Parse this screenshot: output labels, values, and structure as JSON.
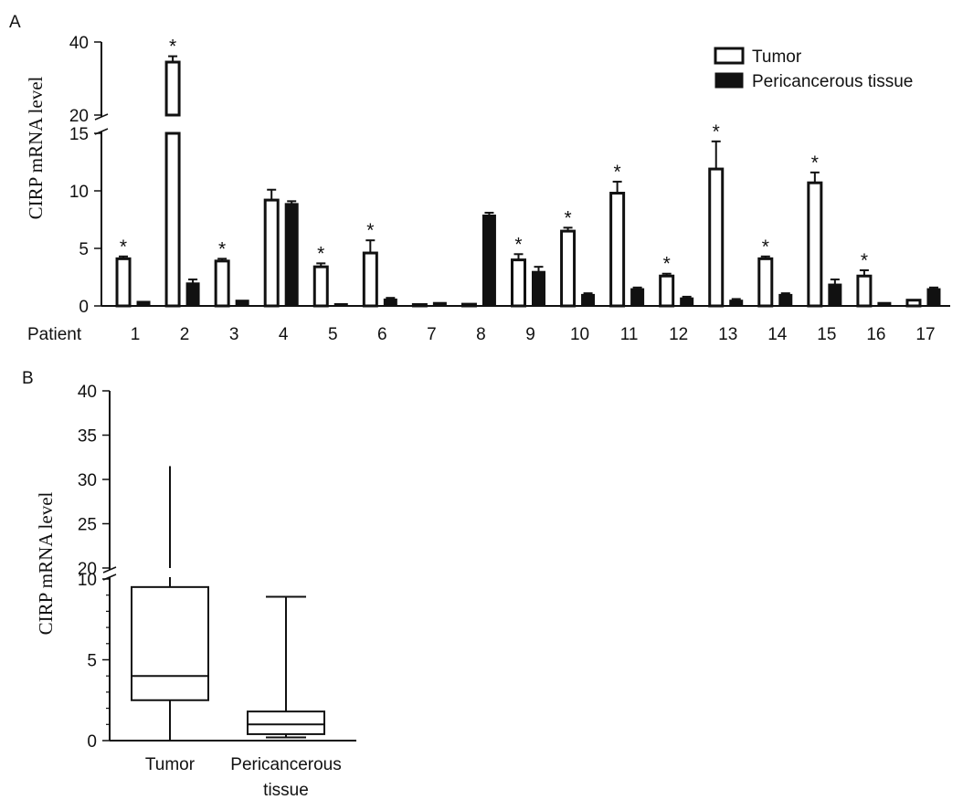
{
  "chart_data": [
    {
      "type": "bar",
      "panel_label": "A",
      "ylabel": "CIRP mRNA level",
      "xlabel": "Patient",
      "y_axis": {
        "broken": true,
        "lower_range": [
          0,
          15
        ],
        "upper_range": [
          20,
          40
        ],
        "ticks_lower": [
          0,
          5,
          10,
          15
        ],
        "ticks_upper": [
          20,
          40
        ]
      },
      "categories": [
        "1",
        "2",
        "3",
        "4",
        "5",
        "6",
        "7",
        "8",
        "9",
        "10",
        "11",
        "12",
        "13",
        "14",
        "15",
        "16",
        "17"
      ],
      "series": [
        {
          "name": "Tumor",
          "color": "#ffffff",
          "values": [
            4.1,
            34.5,
            3.9,
            9.2,
            3.4,
            4.6,
            0.05,
            0.15,
            4.0,
            6.5,
            9.8,
            2.6,
            11.9,
            4.1,
            10.7,
            2.6,
            0.5
          ],
          "errors": [
            0.2,
            1.6,
            0.2,
            0.9,
            0.3,
            1.1,
            0.0,
            0.0,
            0.5,
            0.3,
            1.0,
            0.2,
            2.4,
            0.2,
            0.9,
            0.5,
            0.0
          ]
        },
        {
          "name": "Pericancerous tissue",
          "color": "#111111",
          "values": [
            0.4,
            2.0,
            0.5,
            8.9,
            0.2,
            0.6,
            0.3,
            7.9,
            3.0,
            1.0,
            1.5,
            0.7,
            0.5,
            1.0,
            1.9,
            0.3,
            1.5
          ],
          "errors": [
            0.0,
            0.3,
            0.0,
            0.2,
            0.0,
            0.1,
            0.0,
            0.2,
            0.4,
            0.1,
            0.1,
            0.1,
            0.1,
            0.1,
            0.4,
            0.0,
            0.1
          ]
        }
      ],
      "significant": [
        1,
        2,
        3,
        5,
        6,
        9,
        10,
        11,
        12,
        13,
        14,
        15,
        16
      ],
      "star_symbol": "*",
      "legend": {
        "position": "top-right",
        "entries": [
          "Tumor",
          "Pericancerous tissue"
        ]
      }
    },
    {
      "type": "box",
      "panel_label": "B",
      "ylabel": "CIRP mRNA level",
      "categories": [
        "Tumor",
        "Pericancerous tissue"
      ],
      "category_lines": [
        [
          "Tumor"
        ],
        [
          "Pericancerous",
          "tissue"
        ]
      ],
      "y_axis": {
        "broken": true,
        "lower_range": [
          0,
          10
        ],
        "upper_range": [
          20,
          40
        ],
        "ticks_lower": [
          0,
          5,
          10
        ],
        "ticks_upper": [
          20,
          25,
          30,
          35,
          40
        ]
      },
      "boxes": [
        {
          "name": "Tumor",
          "min": 0.0,
          "q1": 2.5,
          "median": 4.0,
          "q3": 9.5,
          "max": 31.5
        },
        {
          "name": "Pericancerous tissue",
          "min": 0.2,
          "q1": 0.4,
          "median": 1.0,
          "q3": 1.8,
          "max": 8.9
        }
      ]
    }
  ]
}
